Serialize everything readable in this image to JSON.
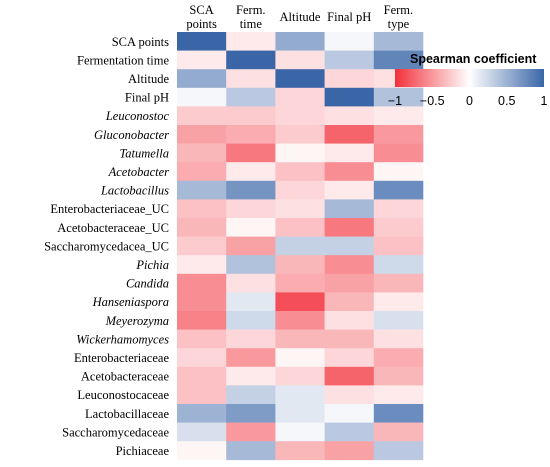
{
  "chart_data": {
    "type": "heatmap",
    "columns": [
      "SCA points",
      "Ferm. time",
      "Altitude",
      "Final pH",
      "Ferm. type"
    ],
    "rows": [
      {
        "label": "SCA points",
        "italic": false,
        "values": [
          1.0,
          -0.1,
          0.55,
          0.05,
          0.45
        ]
      },
      {
        "label": "Fermentation time",
        "italic": false,
        "values": [
          -0.1,
          1.0,
          -0.15,
          0.35,
          0.8
        ]
      },
      {
        "label": "Altitude",
        "italic": false,
        "values": [
          0.55,
          -0.15,
          1.0,
          -0.2,
          -0.15
        ]
      },
      {
        "label": "Final pH",
        "italic": false,
        "values": [
          0.05,
          0.35,
          -0.2,
          1.0,
          0.4
        ]
      },
      {
        "label": "Leuconostoc",
        "italic": true,
        "values": [
          -0.25,
          -0.25,
          -0.2,
          -0.15,
          -0.1
        ]
      },
      {
        "label": "Gluconobacter",
        "italic": true,
        "values": [
          -0.45,
          -0.4,
          -0.25,
          -0.75,
          -0.5
        ]
      },
      {
        "label": "Tatumella",
        "italic": true,
        "values": [
          -0.35,
          -0.65,
          -0.05,
          -0.1,
          -0.55
        ]
      },
      {
        "label": "Acetobacter",
        "italic": true,
        "values": [
          -0.4,
          -0.1,
          -0.3,
          -0.55,
          -0.05
        ]
      },
      {
        "label": "Lactobacillus",
        "italic": true,
        "values": [
          0.45,
          0.7,
          -0.2,
          -0.1,
          0.75
        ]
      },
      {
        "label": "Enterobacteriaceae_UC",
        "italic": false,
        "values": [
          -0.3,
          -0.2,
          -0.15,
          0.45,
          -0.2
        ]
      },
      {
        "label": "Acetobacteraceae_UC",
        "italic": false,
        "values": [
          -0.35,
          -0.05,
          -0.3,
          -0.65,
          -0.25
        ]
      },
      {
        "label": "Saccharomycedacea_UC",
        "italic": false,
        "values": [
          -0.25,
          -0.45,
          0.3,
          0.3,
          -0.3
        ]
      },
      {
        "label": "Pichia",
        "italic": true,
        "values": [
          -0.1,
          0.4,
          -0.35,
          -0.55,
          0.25
        ]
      },
      {
        "label": "Candida",
        "italic": true,
        "values": [
          -0.55,
          -0.15,
          -0.4,
          -0.45,
          -0.35
        ]
      },
      {
        "label": "Hanseniaspora",
        "italic": true,
        "values": [
          -0.55,
          0.15,
          -0.85,
          -0.35,
          -0.1
        ]
      },
      {
        "label": "Meyerozyma",
        "italic": true,
        "values": [
          -0.6,
          0.25,
          -0.55,
          -0.15,
          0.2
        ]
      },
      {
        "label": "Wickerhamomyces",
        "italic": true,
        "values": [
          -0.3,
          -0.2,
          -0.35,
          -0.35,
          -0.15
        ]
      },
      {
        "label": "Enterobacteriaceae",
        "italic": false,
        "values": [
          -0.2,
          -0.5,
          -0.05,
          -0.2,
          -0.4
        ]
      },
      {
        "label": "Acetobacteraceae",
        "italic": false,
        "values": [
          -0.3,
          -0.1,
          -0.2,
          -0.75,
          -0.35
        ]
      },
      {
        "label": "Leuconostocaceae",
        "italic": false,
        "values": [
          -0.3,
          0.3,
          0.15,
          -0.15,
          -0.1
        ]
      },
      {
        "label": "Lactobacillaceae",
        "italic": false,
        "values": [
          0.5,
          0.65,
          0.15,
          0.05,
          0.75
        ]
      },
      {
        "label": "Saccharomycedaceae",
        "italic": false,
        "values": [
          0.2,
          -0.5,
          0.05,
          0.35,
          -0.35
        ]
      },
      {
        "label": "Pichiaceae",
        "italic": false,
        "values": [
          -0.05,
          0.45,
          -0.35,
          -0.45,
          0.35
        ]
      }
    ],
    "legend": {
      "title": "Spearman coefficient",
      "ticks": [
        -1,
        -0.5,
        0,
        0.5,
        1
      ],
      "tick_labels": [
        "−1",
        "−0.5",
        "0",
        "0.5",
        "1"
      ],
      "range": [
        -1,
        1
      ],
      "placement": "right"
    },
    "colors": {
      "negative": "#f2303a",
      "neutral": "#ffffff",
      "positive": "#3a66a8"
    }
  }
}
